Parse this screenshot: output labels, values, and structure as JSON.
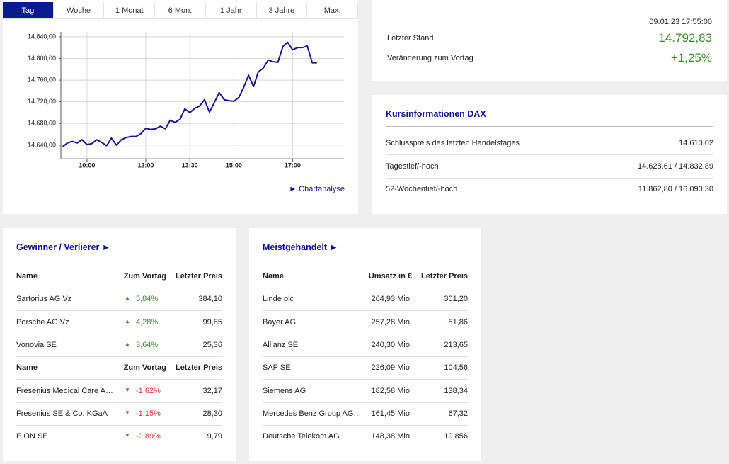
{
  "tabs": [
    "Tag",
    "Woche",
    "1 Monat",
    "6 Mon.",
    "1 Jahr",
    "3 Jahre",
    "Max."
  ],
  "selected_tab": 0,
  "chart_data": {
    "type": "line",
    "color": "#16168a",
    "x": [
      9.17,
      9.33,
      9.5,
      9.67,
      9.83,
      10,
      10.17,
      10.33,
      10.5,
      10.67,
      10.83,
      11,
      11.17,
      11.33,
      11.5,
      11.67,
      11.83,
      12,
      12.17,
      12.33,
      12.5,
      12.67,
      12.83,
      13,
      13.17,
      13.33,
      13.5,
      13.67,
      13.83,
      14,
      14.17,
      14.33,
      14.5,
      14.67,
      14.83,
      15,
      15.17,
      15.33,
      15.5,
      15.67,
      15.83,
      16,
      16.17,
      16.33,
      16.5,
      16.67,
      16.83,
      17,
      17.17,
      17.33,
      17.5,
      17.67,
      17.83
    ],
    "values": [
      14637,
      14644,
      14647,
      14644,
      14650,
      14641,
      14643,
      14650,
      14645,
      14639,
      14653,
      14640,
      14650,
      14654,
      14656,
      14656,
      14661,
      14671,
      14669,
      14670,
      14675,
      14670,
      14686,
      14682,
      14688,
      14707,
      14700,
      14708,
      14712,
      14724,
      14701,
      14718,
      14737,
      14724,
      14722,
      14721,
      14728,
      14746,
      14769,
      14748,
      14775,
      14782,
      14797,
      14794,
      14793,
      14822,
      14830,
      14816,
      14820,
      14820,
      14823,
      14792,
      14792
    ],
    "xlim": [
      9.11,
      18.75
    ],
    "xticks": [
      {
        "value": 10,
        "label": "10:00"
      },
      {
        "value": 12,
        "label": "12:00"
      },
      {
        "value": 13.5,
        "label": "13:30"
      },
      {
        "value": 15,
        "label": "15:00"
      },
      {
        "value": 17,
        "label": "17:00"
      }
    ],
    "ylim": [
      14615,
      14849
    ],
    "yticks": [
      {
        "value": 14640,
        "label": "14.640,00"
      },
      {
        "value": 14680,
        "label": "14.680,00"
      },
      {
        "value": 14720,
        "label": "14.720,00"
      },
      {
        "value": 14760,
        "label": "14.760,00"
      },
      {
        "value": 14800,
        "label": "14.800,00"
      },
      {
        "value": 14840,
        "label": "14.840,00"
      }
    ],
    "grid": true
  },
  "chart_link": "Chartanalyse",
  "quote": {
    "timestamp": "09.01.23 17:55:00",
    "last_label": "Letzter Stand",
    "last_value": "14.792,83",
    "change_label": "Veränderung zum Vortag",
    "change_value": "+1,25%"
  },
  "info": {
    "title": "Kursinformationen DAX",
    "rows": [
      [
        "Schlusspreis des letzten Handelstages",
        "14.610,02"
      ],
      [
        "Tagestief/-hoch",
        "14.628,61 / 14.832,89"
      ],
      [
        "52-Wochentief/-hoch",
        "11.862,80 / 16.090,30"
      ]
    ]
  },
  "movers": {
    "title": "Gewinner / Verlierer",
    "groups": [
      {
        "trend": "up",
        "header": [
          "Name",
          "Zum Vortag",
          "Letzter Preis"
        ],
        "rows": [
          [
            "Sartorius AG Vz",
            "5,84%",
            "384,10"
          ],
          [
            "Porsche AG Vz",
            "4,28%",
            "99,85"
          ],
          [
            "Vonovia SE",
            "3,64%",
            "25,36"
          ]
        ]
      },
      {
        "trend": "down",
        "header": [
          "Name",
          "Zum Vortag",
          "Letzter Preis"
        ],
        "rows": [
          [
            "Fresenius Medical Care A…",
            "-1,62%",
            "32,17"
          ],
          [
            "Fresenius SE & Co. KGaA",
            "-1,15%",
            "28,30"
          ],
          [
            "E.ON SE",
            "-0,89%",
            "9,79"
          ]
        ]
      }
    ]
  },
  "most_traded": {
    "title": "Meistgehandelt",
    "header": [
      "Name",
      "Umsatz in €",
      "Letzter Preis"
    ],
    "rows": [
      [
        "Linde plc",
        "264,93 Mio.",
        "301,20"
      ],
      [
        "Bayer AG",
        "257,28 Mio.",
        "51,86"
      ],
      [
        "Allianz SE",
        "240,30 Mio.",
        "213,65"
      ],
      [
        "SAP SE",
        "226,09 Mio.",
        "104,56"
      ],
      [
        "Siemens AG",
        "182,58 Mio.",
        "138,34"
      ],
      [
        "Mercedes Benz Group AG…",
        "161,45 Mio.",
        "67,32"
      ],
      [
        "Deutsche Telekom AG",
        "148,38 Mio.",
        "19,856"
      ]
    ]
  }
}
